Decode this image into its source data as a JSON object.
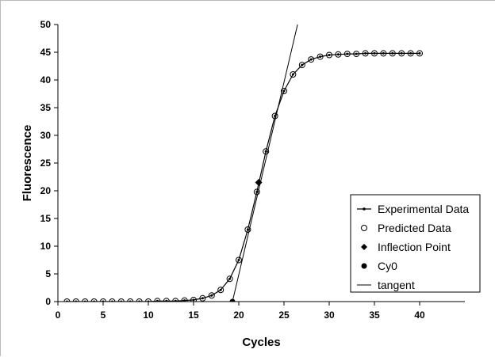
{
  "chart_data": {
    "type": "scatter",
    "title": "",
    "xlabel": "Cycles",
    "ylabel": "Fluorescence",
    "xlim": [
      0,
      45
    ],
    "ylim": [
      0,
      50
    ],
    "xticks": [
      0,
      5,
      10,
      15,
      20,
      25,
      30,
      35,
      40
    ],
    "yticks": [
      0,
      5,
      10,
      15,
      20,
      25,
      30,
      35,
      40,
      45,
      50
    ],
    "grid": false,
    "legend_position": "bottom-right",
    "series": [
      {
        "name": "Experimental Data",
        "kind": "line-with-small-markers",
        "x": [
          1,
          2,
          3,
          4,
          5,
          6,
          7,
          8,
          9,
          10,
          11,
          12,
          13,
          14,
          15,
          16,
          17,
          18,
          19,
          20,
          21,
          22,
          23,
          24,
          25,
          26,
          27,
          28,
          29,
          30,
          31,
          32,
          33,
          34,
          35,
          36,
          37,
          38,
          39,
          40
        ],
        "y": [
          0,
          0,
          0,
          0,
          0,
          0,
          0,
          0,
          0,
          0,
          0.1,
          0.1,
          0.1,
          0.2,
          0.3,
          0.6,
          1.1,
          2.1,
          4.1,
          7.5,
          13.0,
          19.8,
          27.1,
          33.5,
          38.0,
          41.0,
          42.7,
          43.7,
          44.2,
          44.5,
          44.6,
          44.7,
          44.7,
          44.8,
          44.8,
          44.8,
          44.8,
          44.8,
          44.8,
          44.8
        ]
      },
      {
        "name": "Predicted Data",
        "kind": "open-circles",
        "x": [
          1,
          2,
          3,
          4,
          5,
          6,
          7,
          8,
          9,
          10,
          11,
          12,
          13,
          14,
          15,
          16,
          17,
          18,
          19,
          20,
          21,
          22,
          23,
          24,
          25,
          26,
          27,
          28,
          29,
          30,
          31,
          32,
          33,
          34,
          35,
          36,
          37,
          38,
          39,
          40
        ],
        "y": [
          0,
          0,
          0,
          0,
          0,
          0,
          0,
          0,
          0,
          0,
          0.1,
          0.1,
          0.1,
          0.2,
          0.3,
          0.6,
          1.1,
          2.1,
          4.1,
          7.5,
          13.0,
          19.8,
          27.1,
          33.5,
          38.0,
          41.0,
          42.7,
          43.7,
          44.2,
          44.5,
          44.6,
          44.7,
          44.7,
          44.8,
          44.8,
          44.8,
          44.8,
          44.8,
          44.8,
          44.8
        ]
      },
      {
        "name": "Inflection Point",
        "kind": "diamond",
        "x": [
          22.2
        ],
        "y": [
          21.5
        ]
      },
      {
        "name": "Cy0",
        "kind": "filled-circle",
        "x": [
          19.3
        ],
        "y": [
          0
        ]
      },
      {
        "name": "tangent",
        "kind": "line",
        "x": [
          19.3,
          26.5
        ],
        "y": [
          0,
          50
        ]
      }
    ]
  }
}
